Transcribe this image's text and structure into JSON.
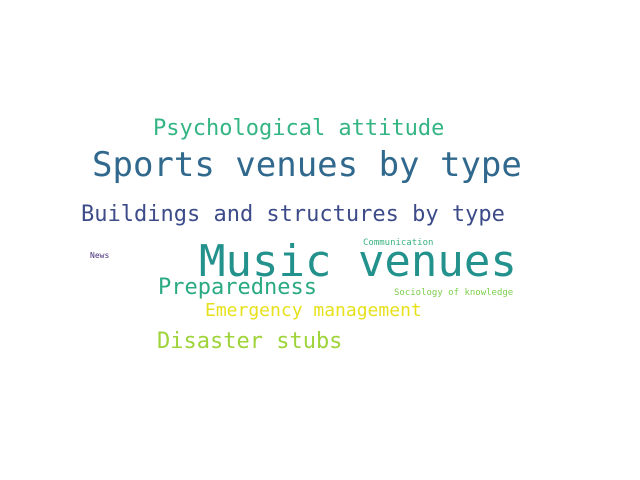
{
  "word_cloud": {
    "words": [
      {
        "id": "w-music",
        "text": "Music venues",
        "color": "#23918c"
      },
      {
        "id": "w-sports",
        "text": "Sports venues by type",
        "color": "#30698d"
      },
      {
        "id": "w-buildings",
        "text": "Buildings and structures by type",
        "color": "#3d4c89"
      },
      {
        "id": "w-psych",
        "text": "Psychological attitude",
        "color": "#34b583"
      },
      {
        "id": "w-prepared",
        "text": "Preparedness",
        "color": "#2aaa82"
      },
      {
        "id": "w-disaster",
        "text": "Disaster stubs",
        "color": "#9ed33a"
      },
      {
        "id": "w-emergency",
        "text": "Emergency management",
        "color": "#e6e11c"
      },
      {
        "id": "w-communication",
        "text": "Communication",
        "color": "#38b27f"
      },
      {
        "id": "w-sociology",
        "text": "Sociology of knowledge",
        "color": "#7ccf4c"
      },
      {
        "id": "w-news",
        "text": "News",
        "color": "#472f7a"
      }
    ]
  }
}
